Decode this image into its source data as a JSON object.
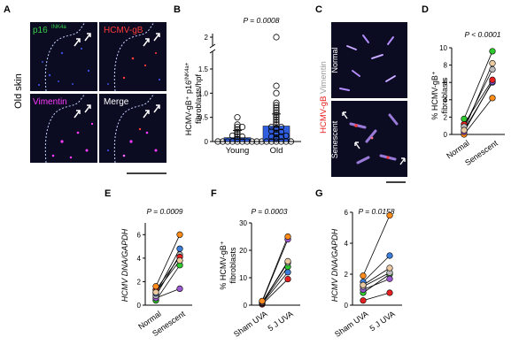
{
  "panels": {
    "A": {
      "letter": "A",
      "side_label": "Old skin",
      "micrographs": [
        {
          "label": "p16",
          "sup": "INK4a",
          "color": "#35d24a"
        },
        {
          "label": "HCMV-gB",
          "sup": "",
          "color": "#ff3b3b"
        },
        {
          "label": "Vimentin",
          "sup": "",
          "color": "#ff3bff"
        },
        {
          "label": "Merge",
          "sup": "",
          "color": "#ffffff"
        }
      ]
    },
    "B": {
      "letter": "B",
      "p_value": "P = 0.0008",
      "ylabel_main": "HCMV-gB⁺ p16",
      "ylabel_sup": "INK4a+",
      "ylabel_line2": "fibroblasts/hpf",
      "y_ticks": [
        "0",
        "0.5",
        "1.0",
        "1.5",
        "2"
      ],
      "categories": [
        "Young",
        "Old"
      ]
    },
    "C": {
      "letter": "C",
      "rows": [
        "Normal",
        "Senescent"
      ],
      "side_label_a": "HCMV-gB",
      "side_label_b": " Vimentin"
    },
    "D": {
      "letter": "D",
      "p_value": "P < 0.0001",
      "ylabel_line1": "% HCMV-gB⁺",
      "ylabel_line2": "fibroblasts",
      "y_ticks": [
        "0",
        "2",
        "4",
        "6",
        "8",
        "10"
      ],
      "categories": [
        "Normal",
        "Senescent"
      ]
    },
    "E": {
      "letter": "E",
      "p_value": "P = 0.0009",
      "ylabel": "HCMV DNA/GAPDH",
      "y_ticks": [
        "0",
        "2",
        "4",
        "6"
      ],
      "categories": [
        "Normal",
        "Senescent"
      ]
    },
    "F": {
      "letter": "F",
      "p_value": "P = 0.0003",
      "ylabel_line1": "% HCMV-gB⁺",
      "ylabel_line2": "fibroblasts",
      "y_ticks": [
        "0",
        "10",
        "20",
        "30"
      ],
      "categories": [
        "Sham UVA",
        "5 J UVA"
      ]
    },
    "G": {
      "letter": "G",
      "p_value": "P = 0.0158",
      "ylabel": "HCMV DNA/GAPDH",
      "y_ticks": [
        "0",
        "2",
        "4",
        "6"
      ],
      "categories": [
        "Sham UVA",
        "5 J UVA"
      ]
    }
  },
  "chart_data": [
    {
      "panel": "B",
      "type": "bar",
      "categories": [
        "Young",
        "Old"
      ],
      "values": [
        0.08,
        0.32
      ],
      "error": [
        0.15,
        0.25
      ],
      "ylim": [
        0,
        2
      ],
      "axis_break": true,
      "points": {
        "Young": [
          0,
          0,
          0,
          0,
          0,
          0,
          0,
          0,
          0,
          0,
          0.05,
          0.1,
          0.1,
          0.12,
          0.15,
          0.2,
          0.25,
          0.3,
          0.3,
          0.35,
          0.5
        ],
        "Old": [
          0,
          0,
          0,
          0,
          0,
          0,
          0.05,
          0.08,
          0.1,
          0.1,
          0.12,
          0.15,
          0.18,
          0.2,
          0.22,
          0.25,
          0.28,
          0.3,
          0.3,
          0.35,
          0.4,
          0.45,
          0.5,
          0.55,
          0.6,
          0.65,
          0.7,
          0.75,
          0.8,
          1.0,
          1.15,
          2.0
        ]
      }
    },
    {
      "panel": "D",
      "type": "scatter",
      "categories": [
        "Normal",
        "Senescent"
      ],
      "ylim": [
        0,
        10
      ],
      "pairs": [
        {
          "color": "#ff8c1a",
          "values": [
            0.0,
            4.2
          ]
        },
        {
          "color": "#3b7dd8",
          "values": [
            0.5,
            6.0
          ]
        },
        {
          "color": "#9b59d0",
          "values": [
            0.3,
            6.1
          ]
        },
        {
          "color": "#e62020",
          "values": [
            1.2,
            6.3
          ]
        },
        {
          "color": "#bbbbbb",
          "values": [
            0.9,
            7.5
          ]
        },
        {
          "color": "#e8c9a0",
          "values": [
            0.5,
            8.2
          ]
        },
        {
          "color": "#2ec92e",
          "values": [
            1.8,
            9.6
          ]
        }
      ]
    },
    {
      "panel": "E",
      "type": "scatter",
      "categories": [
        "Normal",
        "Senescent"
      ],
      "ylim": [
        0,
        7
      ],
      "pairs": [
        {
          "color": "#2ec92e",
          "values": [
            0.4,
            3.4
          ]
        },
        {
          "color": "#9b59d0",
          "values": [
            0.6,
            1.4
          ]
        },
        {
          "color": "#bbbbbb",
          "values": [
            0.8,
            4.3
          ]
        },
        {
          "color": "#3b7dd8",
          "values": [
            1.0,
            4.8
          ]
        },
        {
          "color": "#e62020",
          "values": [
            1.3,
            4.1
          ]
        },
        {
          "color": "#e8c9a0",
          "values": [
            1.1,
            3.8
          ]
        },
        {
          "color": "#ff8c1a",
          "values": [
            1.6,
            6.0
          ]
        }
      ]
    },
    {
      "panel": "F",
      "type": "scatter",
      "categories": [
        "Sham UVA",
        "5 J UVA"
      ],
      "ylim": [
        0,
        30
      ],
      "pairs": [
        {
          "color": "#e62020",
          "values": [
            0.3,
            9.5
          ]
        },
        {
          "color": "#3b7dd8",
          "values": [
            0.6,
            12.0
          ]
        },
        {
          "color": "#2ec92e",
          "values": [
            0.8,
            14.0
          ]
        },
        {
          "color": "#bbbbbb",
          "values": [
            1.0,
            15.5
          ]
        },
        {
          "color": "#e8c9a0",
          "values": [
            0.9,
            16.0
          ]
        },
        {
          "color": "#9b59d0",
          "values": [
            1.2,
            24.0
          ]
        },
        {
          "color": "#ff8c1a",
          "values": [
            1.5,
            25.0
          ]
        }
      ]
    },
    {
      "panel": "G",
      "type": "scatter",
      "categories": [
        "Sham UVA",
        "5 J UVA"
      ],
      "ylim": [
        0,
        6
      ],
      "pairs": [
        {
          "color": "#e62020",
          "values": [
            0.3,
            0.8
          ]
        },
        {
          "color": "#2ec92e",
          "values": [
            0.8,
            2.0
          ]
        },
        {
          "color": "#9b59d0",
          "values": [
            1.0,
            1.7
          ]
        },
        {
          "color": "#bbbbbb",
          "values": [
            1.2,
            2.1
          ]
        },
        {
          "color": "#3b7dd8",
          "values": [
            1.5,
            3.2
          ]
        },
        {
          "color": "#e8c9a0",
          "values": [
            1.3,
            2.4
          ]
        },
        {
          "color": "#ff8c1a",
          "values": [
            1.9,
            5.8
          ]
        }
      ]
    }
  ]
}
